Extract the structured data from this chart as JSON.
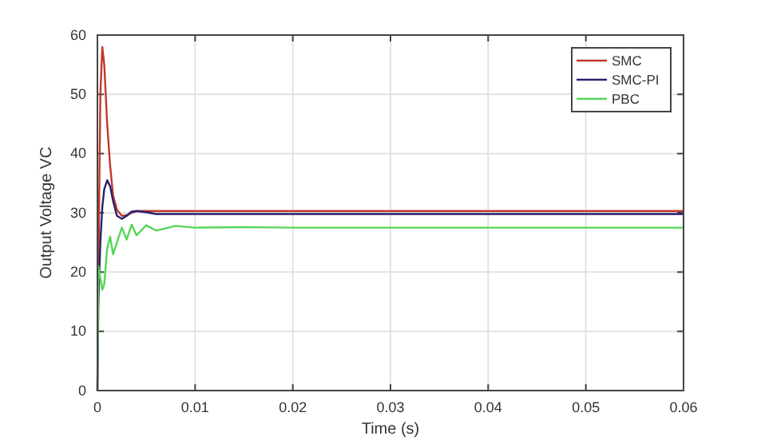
{
  "chart_data": {
    "type": "line",
    "xlabel": "Time (s)",
    "ylabel": "Output Voltage VC",
    "xlim": [
      0,
      0.06
    ],
    "ylim": [
      0,
      60
    ],
    "xticks": [
      0,
      0.01,
      0.02,
      0.03,
      0.04,
      0.05,
      0.06
    ],
    "yticks": [
      0,
      10,
      20,
      30,
      40,
      50,
      60
    ],
    "grid": true,
    "legend": "top right",
    "marker": "none",
    "line_style": "solid",
    "x": [
      0,
      0.0001,
      0.0003,
      0.0005,
      0.0007,
      0.001,
      0.0013,
      0.0016,
      0.002,
      0.0025,
      0.003,
      0.0035,
      0.004,
      0.005,
      0.006,
      0.008,
      0.01,
      0.015,
      0.02,
      0.03,
      0.04,
      0.05,
      0.06
    ],
    "series": [
      {
        "name": "SMC",
        "color": "#c0392b",
        "values": [
          0,
          20,
          50,
          58,
          55,
          45,
          38,
          33,
          30.5,
          29.5,
          29.6,
          30,
          30.3,
          30.3,
          30.3,
          30.3,
          30.3,
          30.3,
          30.3,
          30.3,
          30.3,
          30.3,
          30.3
        ]
      },
      {
        "name": "SMC-PI",
        "color": "#2b1f6e",
        "values": [
          0,
          15,
          25,
          31,
          34,
          35.5,
          34.5,
          32,
          29.5,
          29,
          29.5,
          30.2,
          30.3,
          30.1,
          29.8,
          29.8,
          29.8,
          29.8,
          29.8,
          29.8,
          29.8,
          29.8,
          29.8
        ]
      },
      {
        "name": "PBC",
        "color": "#55d655",
        "values": [
          0,
          21,
          19,
          17,
          18,
          24,
          26,
          23,
          25,
          27.5,
          25.5,
          28,
          26.2,
          27.9,
          27,
          27.8,
          27.5,
          27.6,
          27.5,
          27.5,
          27.5,
          27.5,
          27.5
        ]
      }
    ]
  }
}
